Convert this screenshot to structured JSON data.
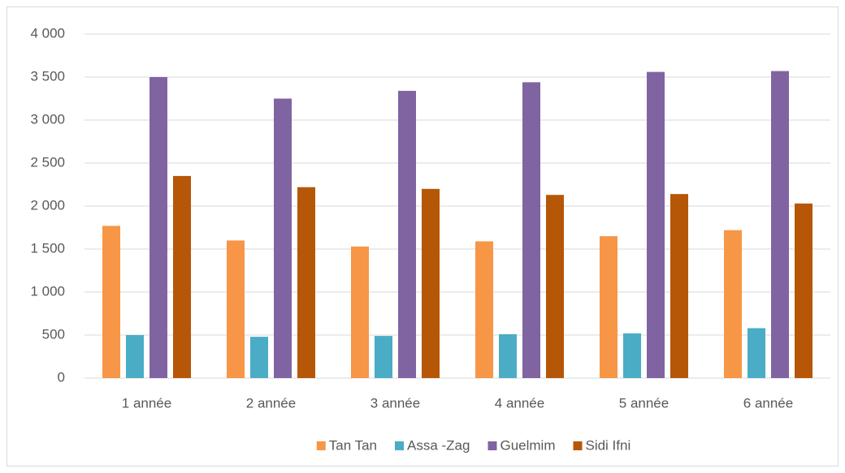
{
  "chart_data": {
    "type": "bar",
    "categories": [
      "1 année",
      "2 année",
      "3 année",
      "4 année",
      "5 année",
      "6 année"
    ],
    "series": [
      {
        "name": "Tan Tan",
        "color": "#f79646",
        "values": [
          1770,
          1600,
          1530,
          1590,
          1650,
          1720
        ]
      },
      {
        "name": "Assa -Zag",
        "color": "#4bacc6",
        "values": [
          500,
          480,
          490,
          510,
          520,
          580
        ]
      },
      {
        "name": "Guelmim",
        "color": "#8064a2",
        "values": [
          3500,
          3250,
          3340,
          3440,
          3560,
          3570
        ]
      },
      {
        "name": "Sidi Ifni",
        "color": "#b65708",
        "values": [
          2350,
          2220,
          2200,
          2130,
          2140,
          2030
        ]
      }
    ],
    "ylim": [
      0,
      4000
    ],
    "yticks": [
      0,
      500,
      {
        "value": 1000,
        "label": "1 000"
      },
      {
        "value": 1500,
        "label": "1 500"
      },
      {
        "value": 2000,
        "label": "2 000"
      },
      {
        "value": 2500,
        "label": "2 500"
      },
      {
        "value": 3000,
        "label": "3 000"
      },
      {
        "value": 3500,
        "label": "3 500"
      },
      {
        "value": 4000,
        "label": "4 000"
      }
    ],
    "grid": true,
    "legend": "bottom"
  }
}
